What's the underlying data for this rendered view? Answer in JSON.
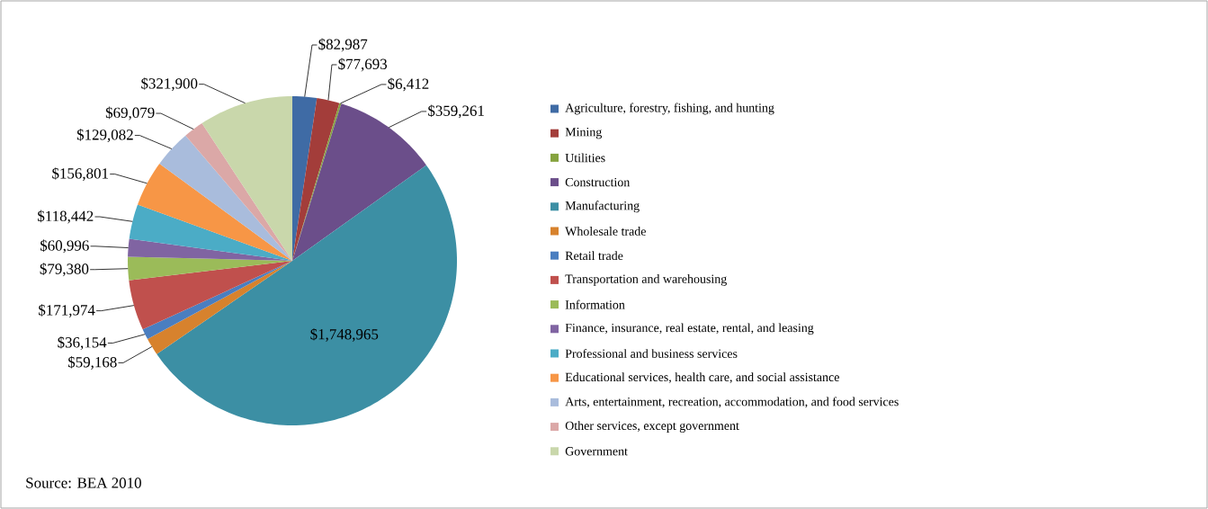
{
  "chart_data": {
    "type": "pie",
    "categories": [
      "Agriculture, forestry, fishing, and hunting",
      "Mining",
      "Utilities",
      "Construction",
      "Manufacturing",
      "Wholesale trade",
      "Retail trade",
      "Transportation and warehousing",
      "Information",
      "Finance, insurance, real estate, rental, and leasing",
      "Professional and business services",
      "Educational services, health care, and social assistance",
      "Arts, entertainment, recreation, accommodation, and food services",
      "Other services, except government",
      "Government"
    ],
    "values": [
      82987,
      77693,
      6412,
      359261,
      1748965,
      59168,
      36154,
      171974,
      79380,
      60996,
      118442,
      156801,
      129082,
      69079,
      321900
    ],
    "value_labels": [
      "$82,987",
      "$77,693",
      "$6,412",
      "$359,261",
      "$1,748,965",
      "$59,168",
      "$36,154",
      "$171,974",
      "$79,380",
      "$60,996",
      "$118,442",
      "$156,801",
      "$129,082",
      "$69,079",
      "$321,900"
    ],
    "colors": [
      "#3f6ba5",
      "#a33d3a",
      "#86a33f",
      "#6b4e8a",
      "#3c8fa4",
      "#d7822d",
      "#4a7ec0",
      "#c0504d",
      "#9bbb59",
      "#8064a2",
      "#4bacc6",
      "#f79646",
      "#a9bcdc",
      "#dba8a7",
      "#c9d7ab"
    ],
    "legend": "right",
    "annotations": [
      "Source: BEA 2010"
    ]
  }
}
